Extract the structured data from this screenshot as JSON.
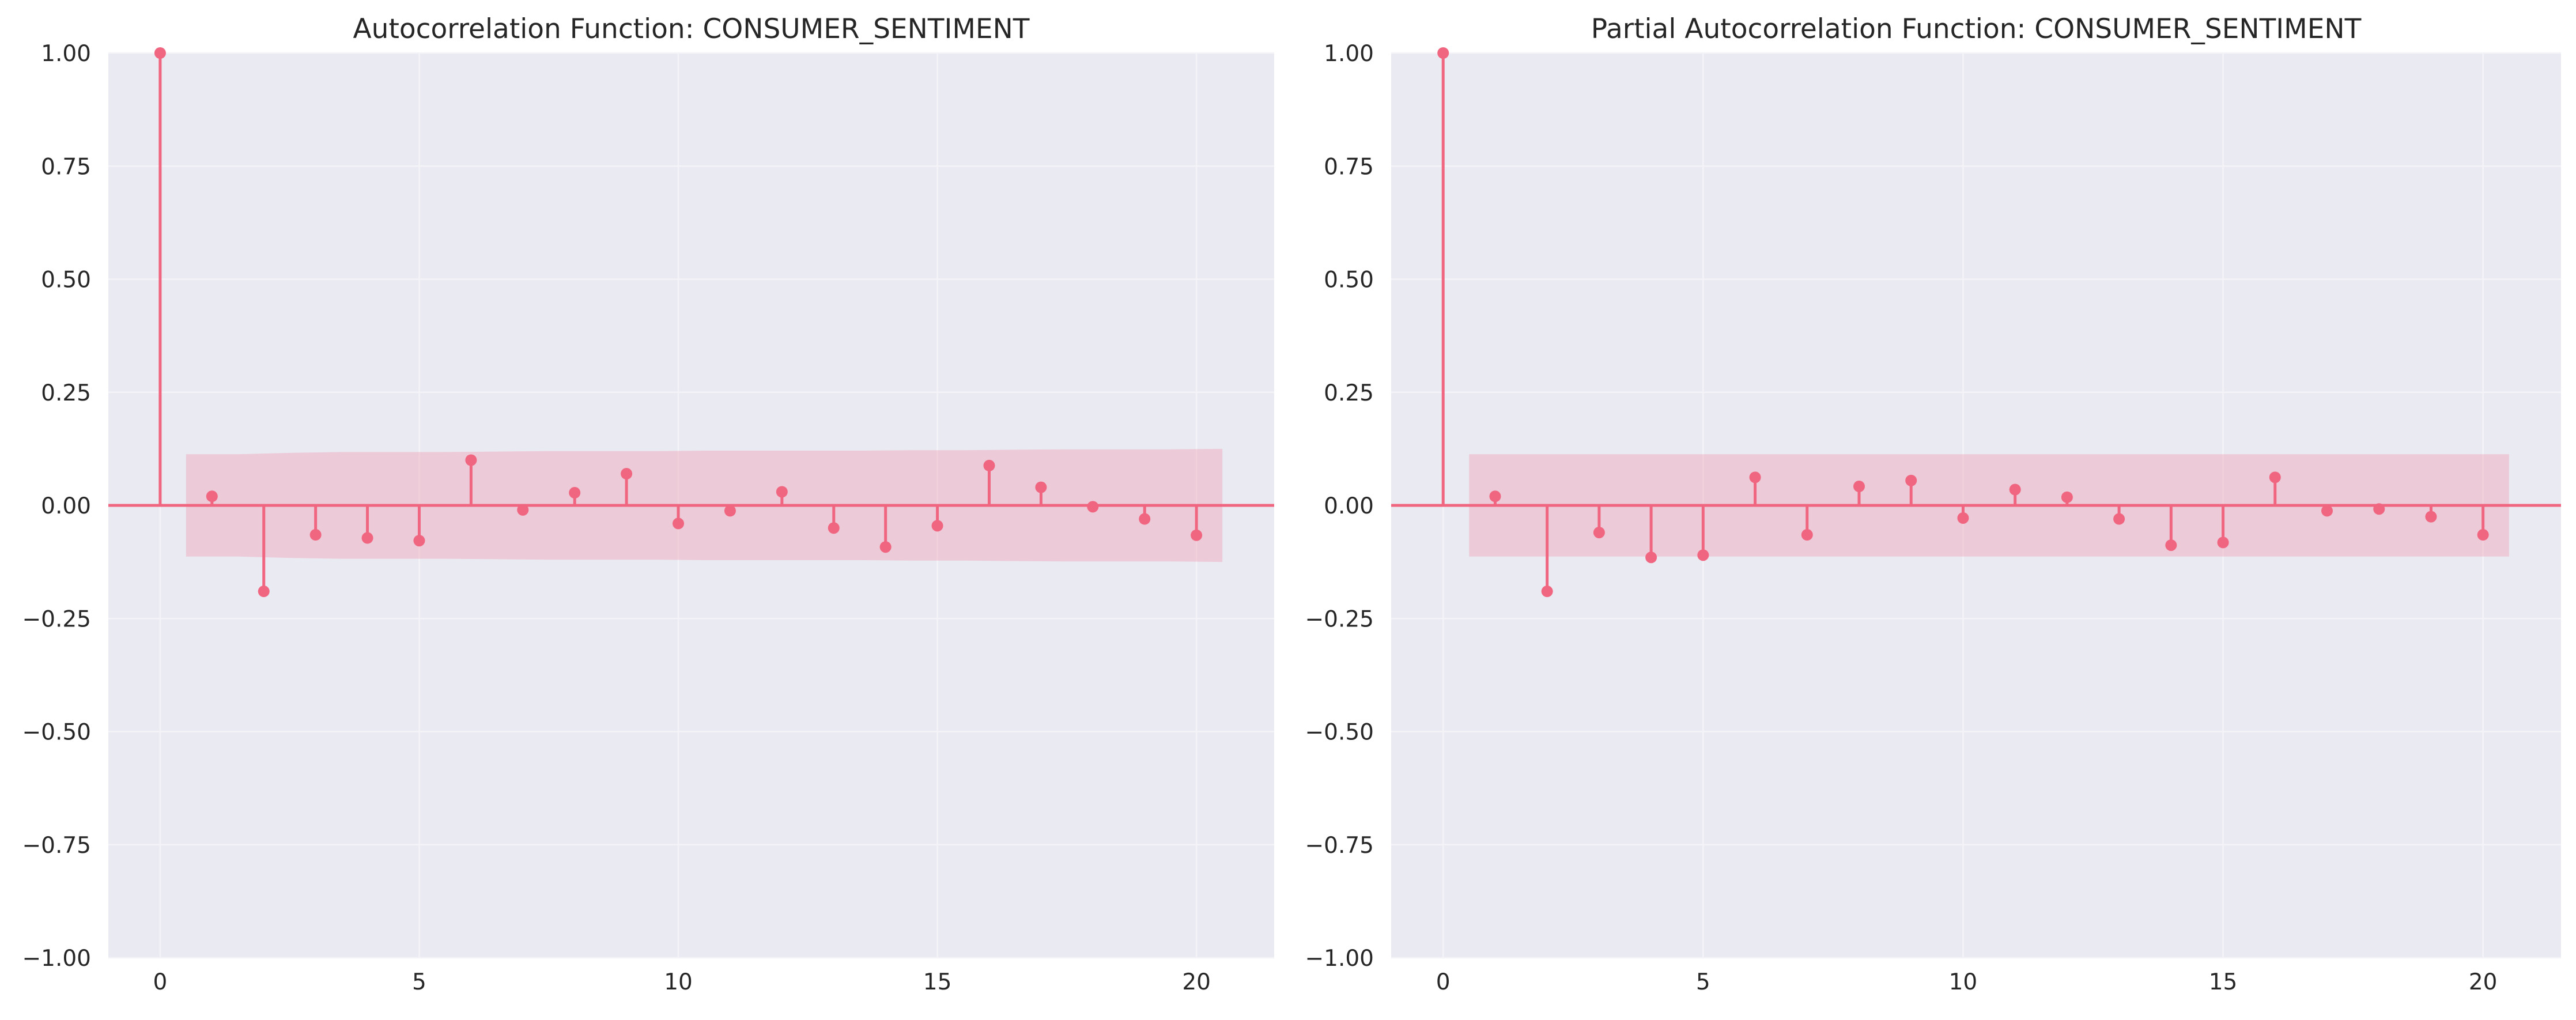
{
  "colors": {
    "figure_background": "#ffffff",
    "axes_background": "#eaeaf2",
    "grid": "#f4f4f8",
    "series": "#f0657f",
    "confidence_band": "#f0a3b8"
  },
  "chart_data": [
    {
      "type": "stem",
      "title": "Autocorrelation Function: CONSUMER_SENTIMENT",
      "xlabel": "",
      "ylabel": "",
      "xlim": [
        -1,
        21.5
      ],
      "ylim": [
        -1,
        1
      ],
      "xticks": [
        0,
        5,
        10,
        15,
        20
      ],
      "xtick_labels": [
        "0",
        "5",
        "10",
        "15",
        "20"
      ],
      "yticks": [
        1,
        0.75,
        0.5,
        0.25,
        0,
        -0.25,
        -0.5,
        -0.75,
        -1
      ],
      "ytick_labels": [
        "1.00",
        "0.75",
        "0.50",
        "0.25",
        "0.00",
        "−0.25",
        "−0.50",
        "−0.75",
        "−1.00"
      ],
      "grid": true,
      "legend": "none",
      "lags": [
        0,
        1,
        2,
        3,
        4,
        5,
        6,
        7,
        8,
        9,
        10,
        11,
        12,
        13,
        14,
        15,
        16,
        17,
        18,
        19,
        20
      ],
      "values": [
        1.0,
        0.02,
        -0.19,
        -0.065,
        -0.072,
        -0.078,
        0.1,
        -0.01,
        0.028,
        0.07,
        -0.04,
        -0.012,
        0.03,
        -0.05,
        -0.092,
        -0.045,
        0.088,
        0.04,
        -0.003,
        -0.03,
        -0.066
      ],
      "confidence_band": {
        "lag_range": [
          0.5,
          20.5
        ],
        "upper": [
          0.113,
          0.113,
          0.116,
          0.118,
          0.118,
          0.118,
          0.119,
          0.12,
          0.12,
          0.12,
          0.121,
          0.121,
          0.121,
          0.121,
          0.122,
          0.122,
          0.123,
          0.124,
          0.124,
          0.124,
          0.125
        ],
        "lower": [
          -0.113,
          -0.113,
          -0.116,
          -0.118,
          -0.118,
          -0.118,
          -0.119,
          -0.12,
          -0.12,
          -0.12,
          -0.121,
          -0.121,
          -0.121,
          -0.121,
          -0.122,
          -0.122,
          -0.123,
          -0.124,
          -0.124,
          -0.124,
          -0.125
        ]
      }
    },
    {
      "type": "stem",
      "title": "Partial Autocorrelation Function: CONSUMER_SENTIMENT",
      "xlabel": "",
      "ylabel": "",
      "xlim": [
        -1,
        21.5
      ],
      "ylim": [
        -1,
        1
      ],
      "xticks": [
        0,
        5,
        10,
        15,
        20
      ],
      "xtick_labels": [
        "0",
        "5",
        "10",
        "15",
        "20"
      ],
      "yticks": [
        1,
        0.75,
        0.5,
        0.25,
        0,
        -0.25,
        -0.5,
        -0.75,
        -1
      ],
      "ytick_labels": [
        "1.00",
        "0.75",
        "0.50",
        "0.25",
        "0.00",
        "−0.25",
        "−0.50",
        "−0.75",
        "−1.00"
      ],
      "grid": true,
      "legend": "none",
      "lags": [
        0,
        1,
        2,
        3,
        4,
        5,
        6,
        7,
        8,
        9,
        10,
        11,
        12,
        13,
        14,
        15,
        16,
        17,
        18,
        19,
        20
      ],
      "values": [
        1.0,
        0.02,
        -0.19,
        -0.06,
        -0.115,
        -0.11,
        0.062,
        -0.065,
        0.042,
        0.055,
        -0.028,
        0.035,
        0.018,
        -0.03,
        -0.088,
        -0.082,
        0.062,
        -0.012,
        -0.008,
        -0.025,
        -0.065
      ],
      "confidence_band": {
        "lag_range": [
          0.5,
          20.5
        ],
        "upper": 0.113,
        "lower": -0.113
      }
    }
  ]
}
